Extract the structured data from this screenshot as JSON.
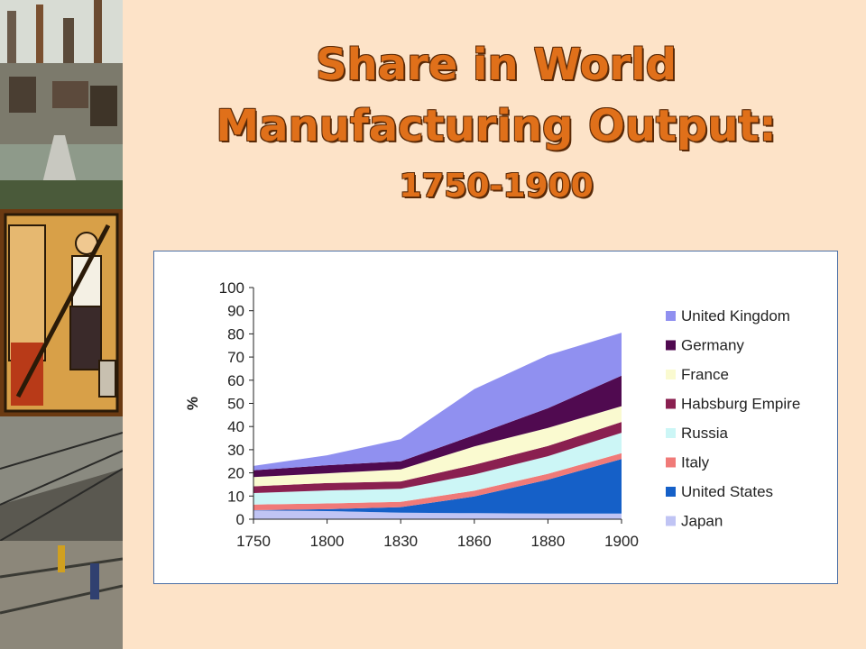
{
  "slide": {
    "title_line1": "Share in World",
    "title_line2": "Manufacturing Output:",
    "title_line3": "1750-1900"
  },
  "colors": {
    "background": "#fde3c8",
    "title": "#e0701a",
    "title_outline": "#5a2a08"
  },
  "chart_data": {
    "type": "area",
    "stacked": true,
    "x": [
      "1750",
      "1800",
      "1830",
      "1860",
      "1880",
      "1900"
    ],
    "ylabel": "%",
    "xlabel": "",
    "ylim": [
      0,
      100
    ],
    "yticks": [
      0,
      10,
      20,
      30,
      40,
      50,
      60,
      70,
      80,
      90,
      100
    ],
    "grid": false,
    "legend": "right",
    "series": [
      {
        "name": "Japan",
        "color": "#c0c4f4",
        "values": [
          3.8,
          3.5,
          2.8,
          2.6,
          2.4,
          2.4
        ]
      },
      {
        "name": "United States",
        "color": "#1560c8",
        "values": [
          0.1,
          0.8,
          2.4,
          7.2,
          14.7,
          23.6
        ]
      },
      {
        "name": "Italy",
        "color": "#f07a78",
        "values": [
          2.4,
          2.5,
          2.3,
          2.5,
          2.5,
          2.5
        ]
      },
      {
        "name": "Russia",
        "color": "#ccf6f6",
        "values": [
          5.0,
          5.6,
          5.6,
          7.0,
          7.6,
          8.8
        ]
      },
      {
        "name": "Habsburg Empire",
        "color": "#8a2050",
        "values": [
          2.9,
          3.2,
          3.2,
          4.2,
          4.4,
          4.7
        ]
      },
      {
        "name": "France",
        "color": "#fafad0",
        "values": [
          4.0,
          4.2,
          5.2,
          7.9,
          7.8,
          6.8
        ]
      },
      {
        "name": "Germany",
        "color": "#500a50",
        "values": [
          2.9,
          3.5,
          3.5,
          4.9,
          8.5,
          13.2
        ]
      },
      {
        "name": "United Kingdom",
        "color": "#9090f0",
        "values": [
          1.9,
          4.3,
          9.5,
          19.9,
          22.9,
          18.5
        ]
      }
    ]
  }
}
